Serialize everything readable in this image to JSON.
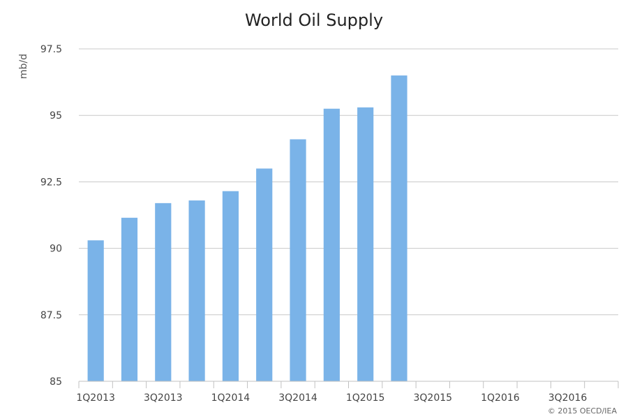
{
  "chart_data": {
    "type": "bar",
    "title": "World Oil Supply",
    "xlabel": "",
    "ylabel": "mb/d",
    "ylim": [
      85,
      97.5
    ],
    "yticks": [
      "85",
      "87.5",
      "90",
      "92.5",
      "95",
      "97.5"
    ],
    "ytick_values": [
      85,
      87.5,
      90,
      92.5,
      95,
      97.5
    ],
    "categories": [
      "1Q2013",
      "2Q2013",
      "3Q2013",
      "4Q2013",
      "1Q2014",
      "2Q2014",
      "3Q2014",
      "4Q2014",
      "1Q2015",
      "2Q2015",
      "3Q2015",
      "4Q2015",
      "1Q2016",
      "2Q2016",
      "3Q2016",
      "4Q2016"
    ],
    "xtick_labels": [
      "1Q2013",
      "",
      "3Q2013",
      "",
      "1Q2014",
      "",
      "3Q2014",
      "",
      "1Q2015",
      "",
      "3Q2015",
      "",
      "1Q2016",
      "",
      "3Q2016",
      ""
    ],
    "values": [
      90.3,
      91.15,
      91.7,
      91.8,
      92.15,
      93.0,
      94.1,
      95.25,
      95.3,
      96.5,
      null,
      null,
      null,
      null,
      null,
      null
    ],
    "bar_color": "#7ab3e8",
    "grid": true,
    "credit": "© 2015 OECD/IEA"
  }
}
